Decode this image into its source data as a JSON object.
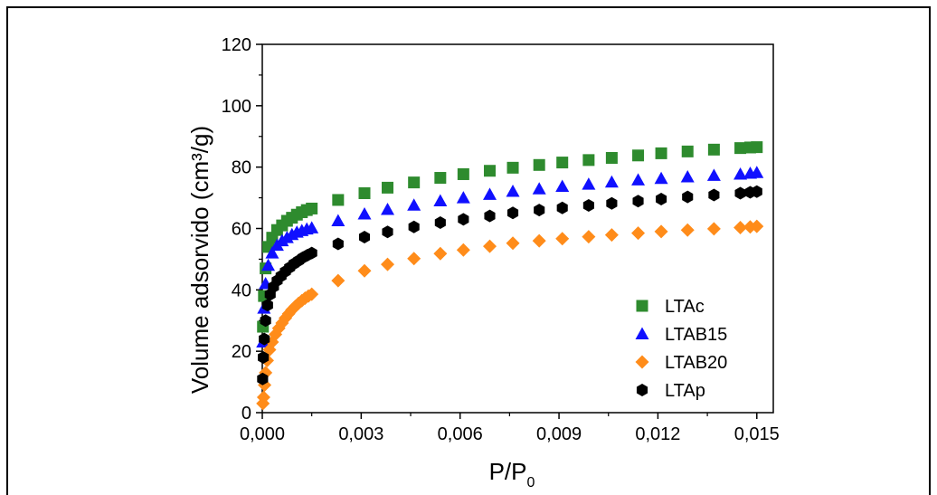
{
  "chart_data": {
    "type": "scatter",
    "xlabel": "P/P",
    "xlabel_sub": "0",
    "ylabel": "Volume adsorvido (cm³/g)",
    "xlim": [
      0,
      0.0155
    ],
    "ylim": [
      0,
      120
    ],
    "xticks": [
      0,
      0.003,
      0.006,
      0.009,
      0.012,
      0.015
    ],
    "xtick_labels": [
      "0,000",
      "0,003",
      "0,006",
      "0,009",
      "0,012",
      "0,015"
    ],
    "yticks": [
      0,
      20,
      40,
      60,
      80,
      100,
      120
    ],
    "ytick_labels": [
      "0",
      "20",
      "40",
      "60",
      "80",
      "100",
      "120"
    ],
    "legend_position": "lower-right",
    "series": [
      {
        "name": "LTAc",
        "color": "#2e8b2e",
        "marker": "square",
        "x": [
          2e-05,
          5e-05,
          0.0001,
          0.00018,
          0.0003,
          0.00045,
          0.0006,
          0.00075,
          0.0009,
          0.00105,
          0.0012,
          0.00135,
          0.0015,
          0.0023,
          0.0031,
          0.0038,
          0.0046,
          0.0054,
          0.0061,
          0.0069,
          0.0076,
          0.0084,
          0.0091,
          0.0099,
          0.0106,
          0.0114,
          0.0121,
          0.0129,
          0.0137,
          0.0145,
          0.0148,
          0.015
        ],
        "y": [
          28,
          38,
          47,
          54,
          57,
          59.5,
          61,
          62.5,
          63.5,
          64.5,
          65.3,
          66,
          66.5,
          69.3,
          71.5,
          73.3,
          75,
          76.5,
          77.7,
          78.8,
          79.8,
          80.7,
          81.5,
          82.3,
          83,
          83.8,
          84.5,
          85.1,
          85.7,
          86.2,
          86.4,
          86.5
        ]
      },
      {
        "name": "LTAB15",
        "color": "#1010ff",
        "marker": "triangle",
        "x": [
          2e-05,
          5e-05,
          0.0001,
          0.00018,
          0.0003,
          0.00045,
          0.0006,
          0.00075,
          0.0009,
          0.00105,
          0.0012,
          0.00135,
          0.0015,
          0.0023,
          0.0031,
          0.0038,
          0.0046,
          0.0054,
          0.0061,
          0.0069,
          0.0076,
          0.0084,
          0.0091,
          0.0099,
          0.0106,
          0.0114,
          0.0121,
          0.0129,
          0.0137,
          0.0145,
          0.0148,
          0.015
        ],
        "y": [
          23,
          34,
          42,
          48,
          52,
          54.5,
          56,
          57,
          58,
          58.8,
          59.3,
          59.8,
          60.2,
          62.5,
          64.7,
          66.2,
          67.6,
          69,
          70,
          71.1,
          72.1,
          72.9,
          73.7,
          74.4,
          75.1,
          75.8,
          76.3,
          76.8,
          77.3,
          77.7,
          78,
          78.2
        ]
      },
      {
        "name": "LTAB20",
        "color": "#ff8c1a",
        "marker": "diamond",
        "x": [
          2e-05,
          4e-05,
          7e-05,
          0.0001,
          0.00015,
          0.00022,
          0.0003,
          0.0004,
          0.0005,
          0.0006,
          0.0007,
          0.0008,
          0.0009,
          0.001,
          0.0011,
          0.0012,
          0.0013,
          0.0014,
          0.0015,
          0.0023,
          0.0031,
          0.0038,
          0.0046,
          0.0054,
          0.0061,
          0.0069,
          0.0076,
          0.0084,
          0.0091,
          0.0099,
          0.0106,
          0.0114,
          0.0121,
          0.0129,
          0.0137,
          0.0145,
          0.0148,
          0.015
        ],
        "y": [
          3,
          5,
          9,
          13,
          17,
          20.5,
          23,
          25.5,
          27.5,
          29.2,
          30.8,
          32.2,
          33.5,
          34.6,
          35.6,
          36.5,
          37.3,
          38,
          38.6,
          43,
          46.2,
          48.3,
          50.2,
          51.8,
          53,
          54.2,
          55.2,
          56,
          56.7,
          57.3,
          57.9,
          58.5,
          59,
          59.5,
          59.9,
          60.3,
          60.5,
          60.7
        ]
      },
      {
        "name": "LTAp",
        "color": "#000000",
        "marker": "hexagon",
        "x": [
          1e-05,
          3e-05,
          6e-05,
          0.0001,
          0.00016,
          0.00024,
          0.00034,
          0.00045,
          0.00057,
          0.0007,
          0.00083,
          0.00096,
          0.0011,
          0.00123,
          0.00137,
          0.0015,
          0.0023,
          0.0031,
          0.0038,
          0.0046,
          0.0054,
          0.0061,
          0.0069,
          0.0076,
          0.0084,
          0.0091,
          0.0099,
          0.0106,
          0.0114,
          0.0121,
          0.0129,
          0.0137,
          0.0145,
          0.0148,
          0.015
        ],
        "y": [
          11,
          18,
          24,
          30,
          35,
          38.5,
          41,
          43,
          44.5,
          46,
          47.3,
          48.5,
          49.5,
          50.5,
          51.3,
          52,
          55,
          57.2,
          58.9,
          60.5,
          61.9,
          63,
          64.1,
          65.1,
          66,
          66.7,
          67.5,
          68.2,
          68.9,
          69.6,
          70.3,
          70.9,
          71.5,
          71.8,
          72
        ]
      }
    ]
  }
}
